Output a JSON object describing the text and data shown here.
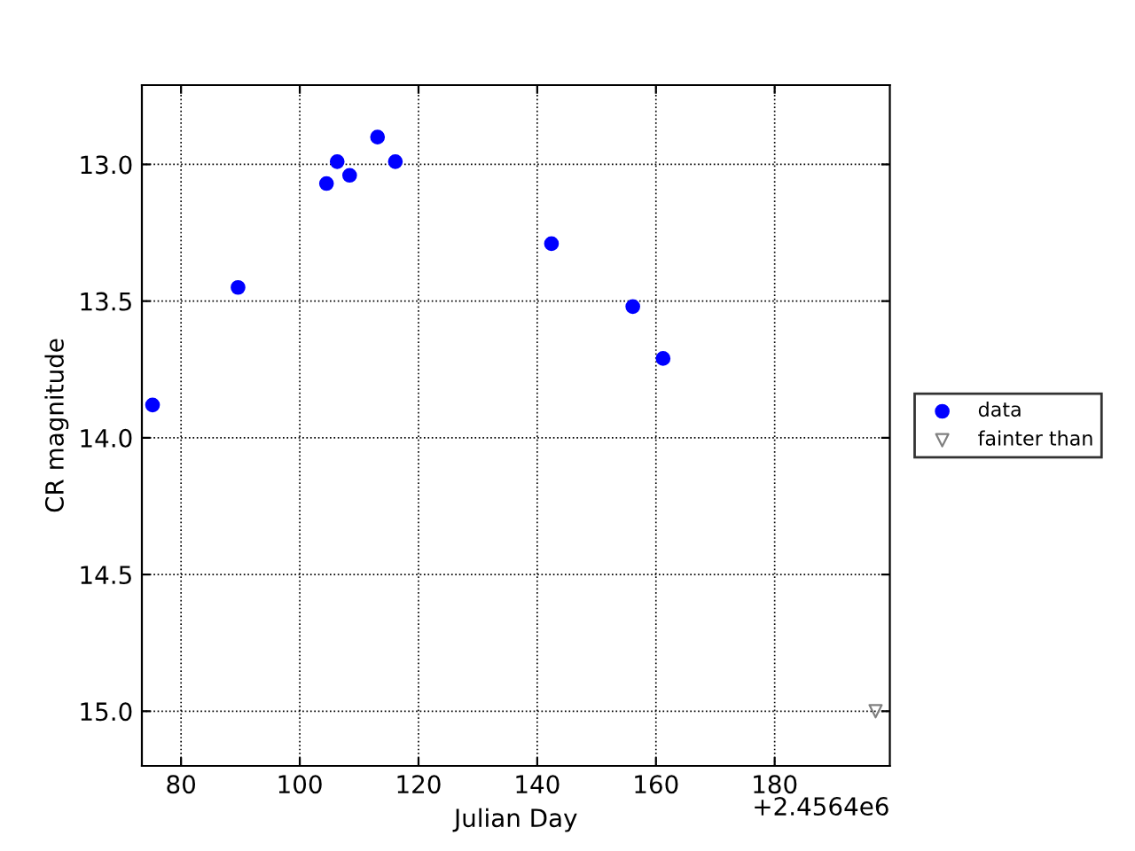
{
  "chart_data": {
    "type": "scatter",
    "xlabel": "Julian Day",
    "ylabel": "CR magnitude",
    "annotations": [
      "+2.4564e6"
    ],
    "series": [
      {
        "name": "data",
        "color": "#0000ff",
        "marker": "circle",
        "x": [
          75.2,
          89.6,
          104.5,
          106.3,
          108.4,
          113.1,
          116.1,
          142.4,
          156.1,
          161.2
        ],
        "values": [
          13.88,
          13.45,
          13.07,
          12.99,
          13.04,
          12.9,
          12.99,
          13.29,
          13.52,
          13.71
        ]
      },
      {
        "name": "fainter than",
        "color": "#808080",
        "marker": "triangle",
        "x": [
          197.0
        ],
        "values": [
          15.0
        ]
      }
    ],
    "xlim": [
      73.4,
      199.4
    ],
    "xticks": [
      80,
      100,
      120,
      140,
      160,
      180
    ],
    "ylim": [
      15.2,
      12.71
    ],
    "yticks": [
      {
        "value": 13.0,
        "label": "13.0"
      },
      {
        "value": 13.5,
        "label": "13.5"
      },
      {
        "value": 14.0,
        "label": "14.0"
      },
      {
        "value": 14.5,
        "label": "14.5"
      },
      {
        "value": 15.0,
        "label": "15.0"
      }
    ],
    "grid": true,
    "legend": "right"
  }
}
